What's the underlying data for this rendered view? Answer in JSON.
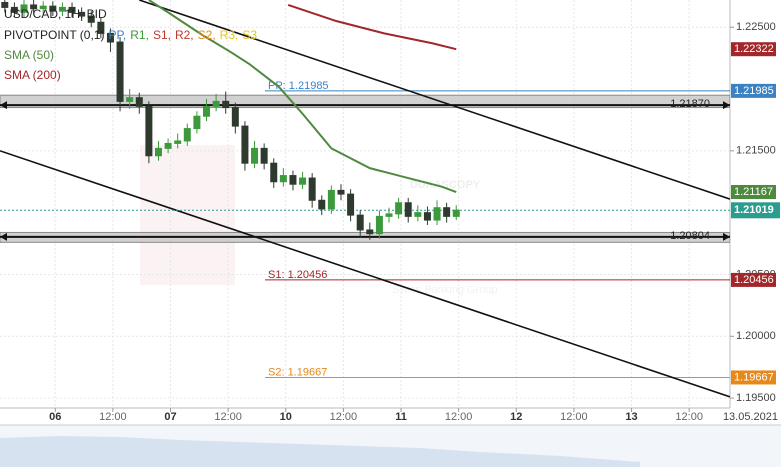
{
  "chart_data": {
    "type": "candlestick",
    "title": "USD/CAD, 1H, BID",
    "indicator_label": "PIVOTPOINT (0,1)",
    "pivot_legend": [
      {
        "name": "PP,",
        "color": "#3b82c4"
      },
      {
        "name": "R1,",
        "color": "#3a9a3a"
      },
      {
        "name": "S1,",
        "color": "#c0392b"
      },
      {
        "name": "R2,",
        "color": "#c0392b"
      },
      {
        "name": "S2,",
        "color": "#e6891a"
      },
      {
        "name": "R3,",
        "color": "#e6c81a"
      },
      {
        "name": "S3",
        "color": "#e6c81a"
      }
    ],
    "up_color": "#3c9a3c",
    "down_color": "#2f3a2f",
    "x": [
      1,
      3,
      5,
      7,
      9,
      11,
      13,
      15,
      17,
      19,
      21,
      23,
      25,
      27,
      29,
      31,
      33,
      35,
      37,
      39,
      41,
      43,
      45,
      47,
      49,
      51,
      53,
      55,
      57,
      59,
      61,
      63,
      65,
      67,
      69,
      71,
      73,
      75,
      77,
      79,
      81,
      83,
      85,
      87,
      89,
      91,
      93,
      95
    ],
    "open": [
      1.227,
      1.2266,
      1.2262,
      1.2268,
      1.2265,
      1.2267,
      1.2263,
      1.2266,
      1.2262,
      1.2259,
      1.2254,
      1.2245,
      1.2238,
      1.219,
      1.2193,
      1.2186,
      1.2146,
      1.2152,
      1.2156,
      1.2158,
      1.2168,
      1.2178,
      1.2186,
      1.219,
      1.2185,
      1.217,
      1.214,
      1.2152,
      1.214,
      1.2125,
      1.213,
      1.2123,
      1.2128,
      1.211,
      1.2103,
      1.2118,
      1.2115,
      1.2098,
      1.2086,
      1.2083,
      1.2097,
      1.2099,
      1.2108,
      1.2097,
      1.21,
      1.2094,
      1.2104,
      1.2097
    ],
    "high": [
      1.2274,
      1.227,
      1.2272,
      1.2272,
      1.2271,
      1.2271,
      1.227,
      1.227,
      1.2266,
      1.2263,
      1.2258,
      1.2249,
      1.2242,
      1.22,
      1.2197,
      1.219,
      1.2158,
      1.216,
      1.2164,
      1.2172,
      1.2182,
      1.2192,
      1.2196,
      1.2198,
      1.2189,
      1.2174,
      1.2158,
      1.2156,
      1.2144,
      1.2136,
      1.2134,
      1.2133,
      1.2132,
      1.2114,
      1.2122,
      1.2123,
      1.2119,
      1.2102,
      1.2092,
      1.2102,
      1.2104,
      1.2112,
      1.2112,
      1.2106,
      1.2105,
      1.211,
      1.2108,
      1.2106
    ],
    "low": [
      1.2262,
      1.2258,
      1.2258,
      1.2261,
      1.2261,
      1.2259,
      1.2259,
      1.2258,
      1.2255,
      1.225,
      1.2241,
      1.223,
      1.2182,
      1.2184,
      1.218,
      1.214,
      1.2142,
      1.2148,
      1.2152,
      1.2154,
      1.2164,
      1.2174,
      1.2182,
      1.218,
      1.2164,
      1.2134,
      1.2136,
      1.2135,
      1.212,
      1.2121,
      1.2118,
      1.2119,
      1.2104,
      1.2098,
      1.2099,
      1.211,
      1.2093,
      1.208,
      1.2078,
      1.2079,
      1.2092,
      1.2095,
      1.2092,
      1.2093,
      1.209,
      1.209,
      1.2092,
      1.2094
    ],
    "close": [
      1.2266,
      1.2262,
      1.2268,
      1.2265,
      1.2267,
      1.2263,
      1.2266,
      1.2262,
      1.2259,
      1.2254,
      1.2245,
      1.2238,
      1.219,
      1.2193,
      1.2186,
      1.2146,
      1.2152,
      1.2156,
      1.2158,
      1.2168,
      1.2178,
      1.2186,
      1.219,
      1.2185,
      1.217,
      1.214,
      1.2152,
      1.214,
      1.2125,
      1.213,
      1.2123,
      1.2128,
      1.211,
      1.2103,
      1.2118,
      1.2115,
      1.2098,
      1.2086,
      1.2083,
      1.2097,
      1.2099,
      1.2108,
      1.2097,
      1.21,
      1.2094,
      1.2104,
      1.2097,
      1.2102
    ],
    "series": [
      {
        "name": "SMA (50)",
        "color": "#4e8a3e",
        "x": [
          31,
          35,
          42,
          48,
          52,
          58,
          63,
          69,
          77,
          85,
          92,
          95
        ],
        "values": [
          1.2272,
          1.2262,
          1.2244,
          1.223,
          1.222,
          1.2202,
          1.218,
          1.2152,
          1.2136,
          1.2128,
          1.2121,
          1.21167
        ]
      },
      {
        "name": "SMA (200)",
        "color": "#a3262a",
        "x": [
          60,
          70,
          80,
          90,
          95
        ],
        "values": [
          1.2268,
          1.2255,
          1.2245,
          1.2237,
          1.22322
        ]
      }
    ],
    "levels": [
      {
        "label": "PP: 1.21985",
        "value": 1.21985,
        "color": "#3b82c4"
      },
      {
        "label": "S1: 1.20456",
        "value": 1.20456,
        "color": "#a3262a"
      },
      {
        "label": "S2: 1.19667",
        "value": 1.19667,
        "color": "#e6891a"
      }
    ],
    "zones": [
      {
        "value": 1.2187,
        "label": "1.21870",
        "band": [
          1.2185,
          1.2195
        ]
      },
      {
        "value": 1.20804,
        "label": "1.20804",
        "band": [
          1.2076,
          1.2084
        ]
      }
    ],
    "current_price": {
      "value": 1.21019,
      "color": "#2a9d8f"
    },
    "trendlines": [
      {
        "x": [
          29,
          152
        ],
        "values": [
          1.2272,
          1.2111
        ]
      },
      {
        "x": [
          0,
          152
        ],
        "values": [
          1.215,
          1.1951
        ]
      }
    ],
    "xlim": [
      0,
      152
    ],
    "xticks": [
      {
        "value": 11.5,
        "label": "06"
      },
      {
        "value": 23.5,
        "label": "12:00"
      },
      {
        "value": 35.5,
        "label": "07"
      },
      {
        "value": 47.5,
        "label": "12:00"
      },
      {
        "value": 59.5,
        "label": "10"
      },
      {
        "value": 71.5,
        "label": "12:00"
      },
      {
        "value": 83.5,
        "label": "11"
      },
      {
        "value": 95.5,
        "label": "12:00"
      },
      {
        "value": 107.5,
        "label": "12"
      },
      {
        "value": 119.5,
        "label": "12:00"
      },
      {
        "value": 131.5,
        "label": "13"
      },
      {
        "value": 143.5,
        "label": "12:00"
      }
    ],
    "date_label": "13.05.2021",
    "ylim": [
      1.1942,
      1.2272
    ],
    "yticks": [
      {
        "value": 1.225,
        "label": "1.22500"
      },
      {
        "value": 1.215,
        "label": "1.21500"
      },
      {
        "value": 1.205,
        "label": "1.20500"
      },
      {
        "value": 1.2,
        "label": "1.20000"
      },
      {
        "value": 1.195,
        "label": "1.19500"
      }
    ],
    "grid": true,
    "watermark": [
      "DUKASCOPY",
      "Swiss Banking Group"
    ]
  }
}
